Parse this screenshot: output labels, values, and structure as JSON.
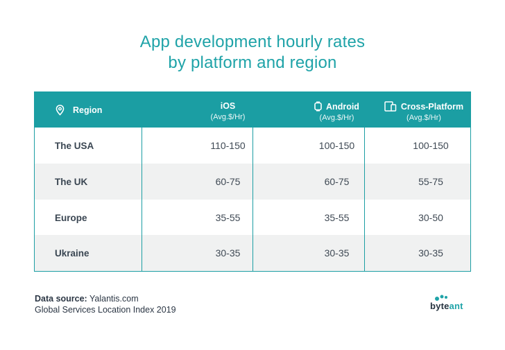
{
  "title_line1": "App development hourly rates",
  "title_line2": "by platform and region",
  "colors": {
    "accent": "#1b9ea3",
    "title": "#1fa3a8",
    "row_alt": "#f0f1f1"
  },
  "table": {
    "region_header": "Region",
    "columns": [
      {
        "name": "iOS",
        "unit": "(Avg.$/Hr)",
        "icon": ""
      },
      {
        "name": "Android",
        "unit": "(Avg.$/Hr)",
        "icon": "smartwatch-icon"
      },
      {
        "name": "Cross-Platform",
        "unit": "(Avg.$/Hr)",
        "icon": "devices-icon"
      }
    ],
    "rows": [
      {
        "region": "The USA",
        "values": [
          "110-150",
          "100-150",
          "100-150"
        ]
      },
      {
        "region": "The UK",
        "values": [
          "60-75",
          "60-75",
          "55-75"
        ]
      },
      {
        "region": "Europe",
        "values": [
          "35-55",
          "35-55",
          "30-50"
        ]
      },
      {
        "region": "Ukraine",
        "values": [
          "30-35",
          "30-35",
          "30-35"
        ]
      }
    ]
  },
  "chart_data": {
    "type": "table",
    "title": "App development hourly rates by platform and region",
    "columns": [
      "Region",
      "iOS (Avg.$/Hr)",
      "Android (Avg.$/Hr)",
      "Cross-Platform (Avg.$/Hr)"
    ],
    "rows": [
      [
        "The USA",
        "110-150",
        "100-150",
        "100-150"
      ],
      [
        "The UK",
        "60-75",
        "60-75",
        "55-75"
      ],
      [
        "Europe",
        "35-55",
        "35-55",
        "30-50"
      ],
      [
        "Ukraine",
        "30-35",
        "30-35",
        "30-35"
      ]
    ]
  },
  "footer": {
    "source_label": "Data source:",
    "source_value": "Yalantis.com",
    "line2": "Global Services Location Index 2019"
  },
  "logo": {
    "prefix": "byte",
    "suffix": "ant"
  }
}
